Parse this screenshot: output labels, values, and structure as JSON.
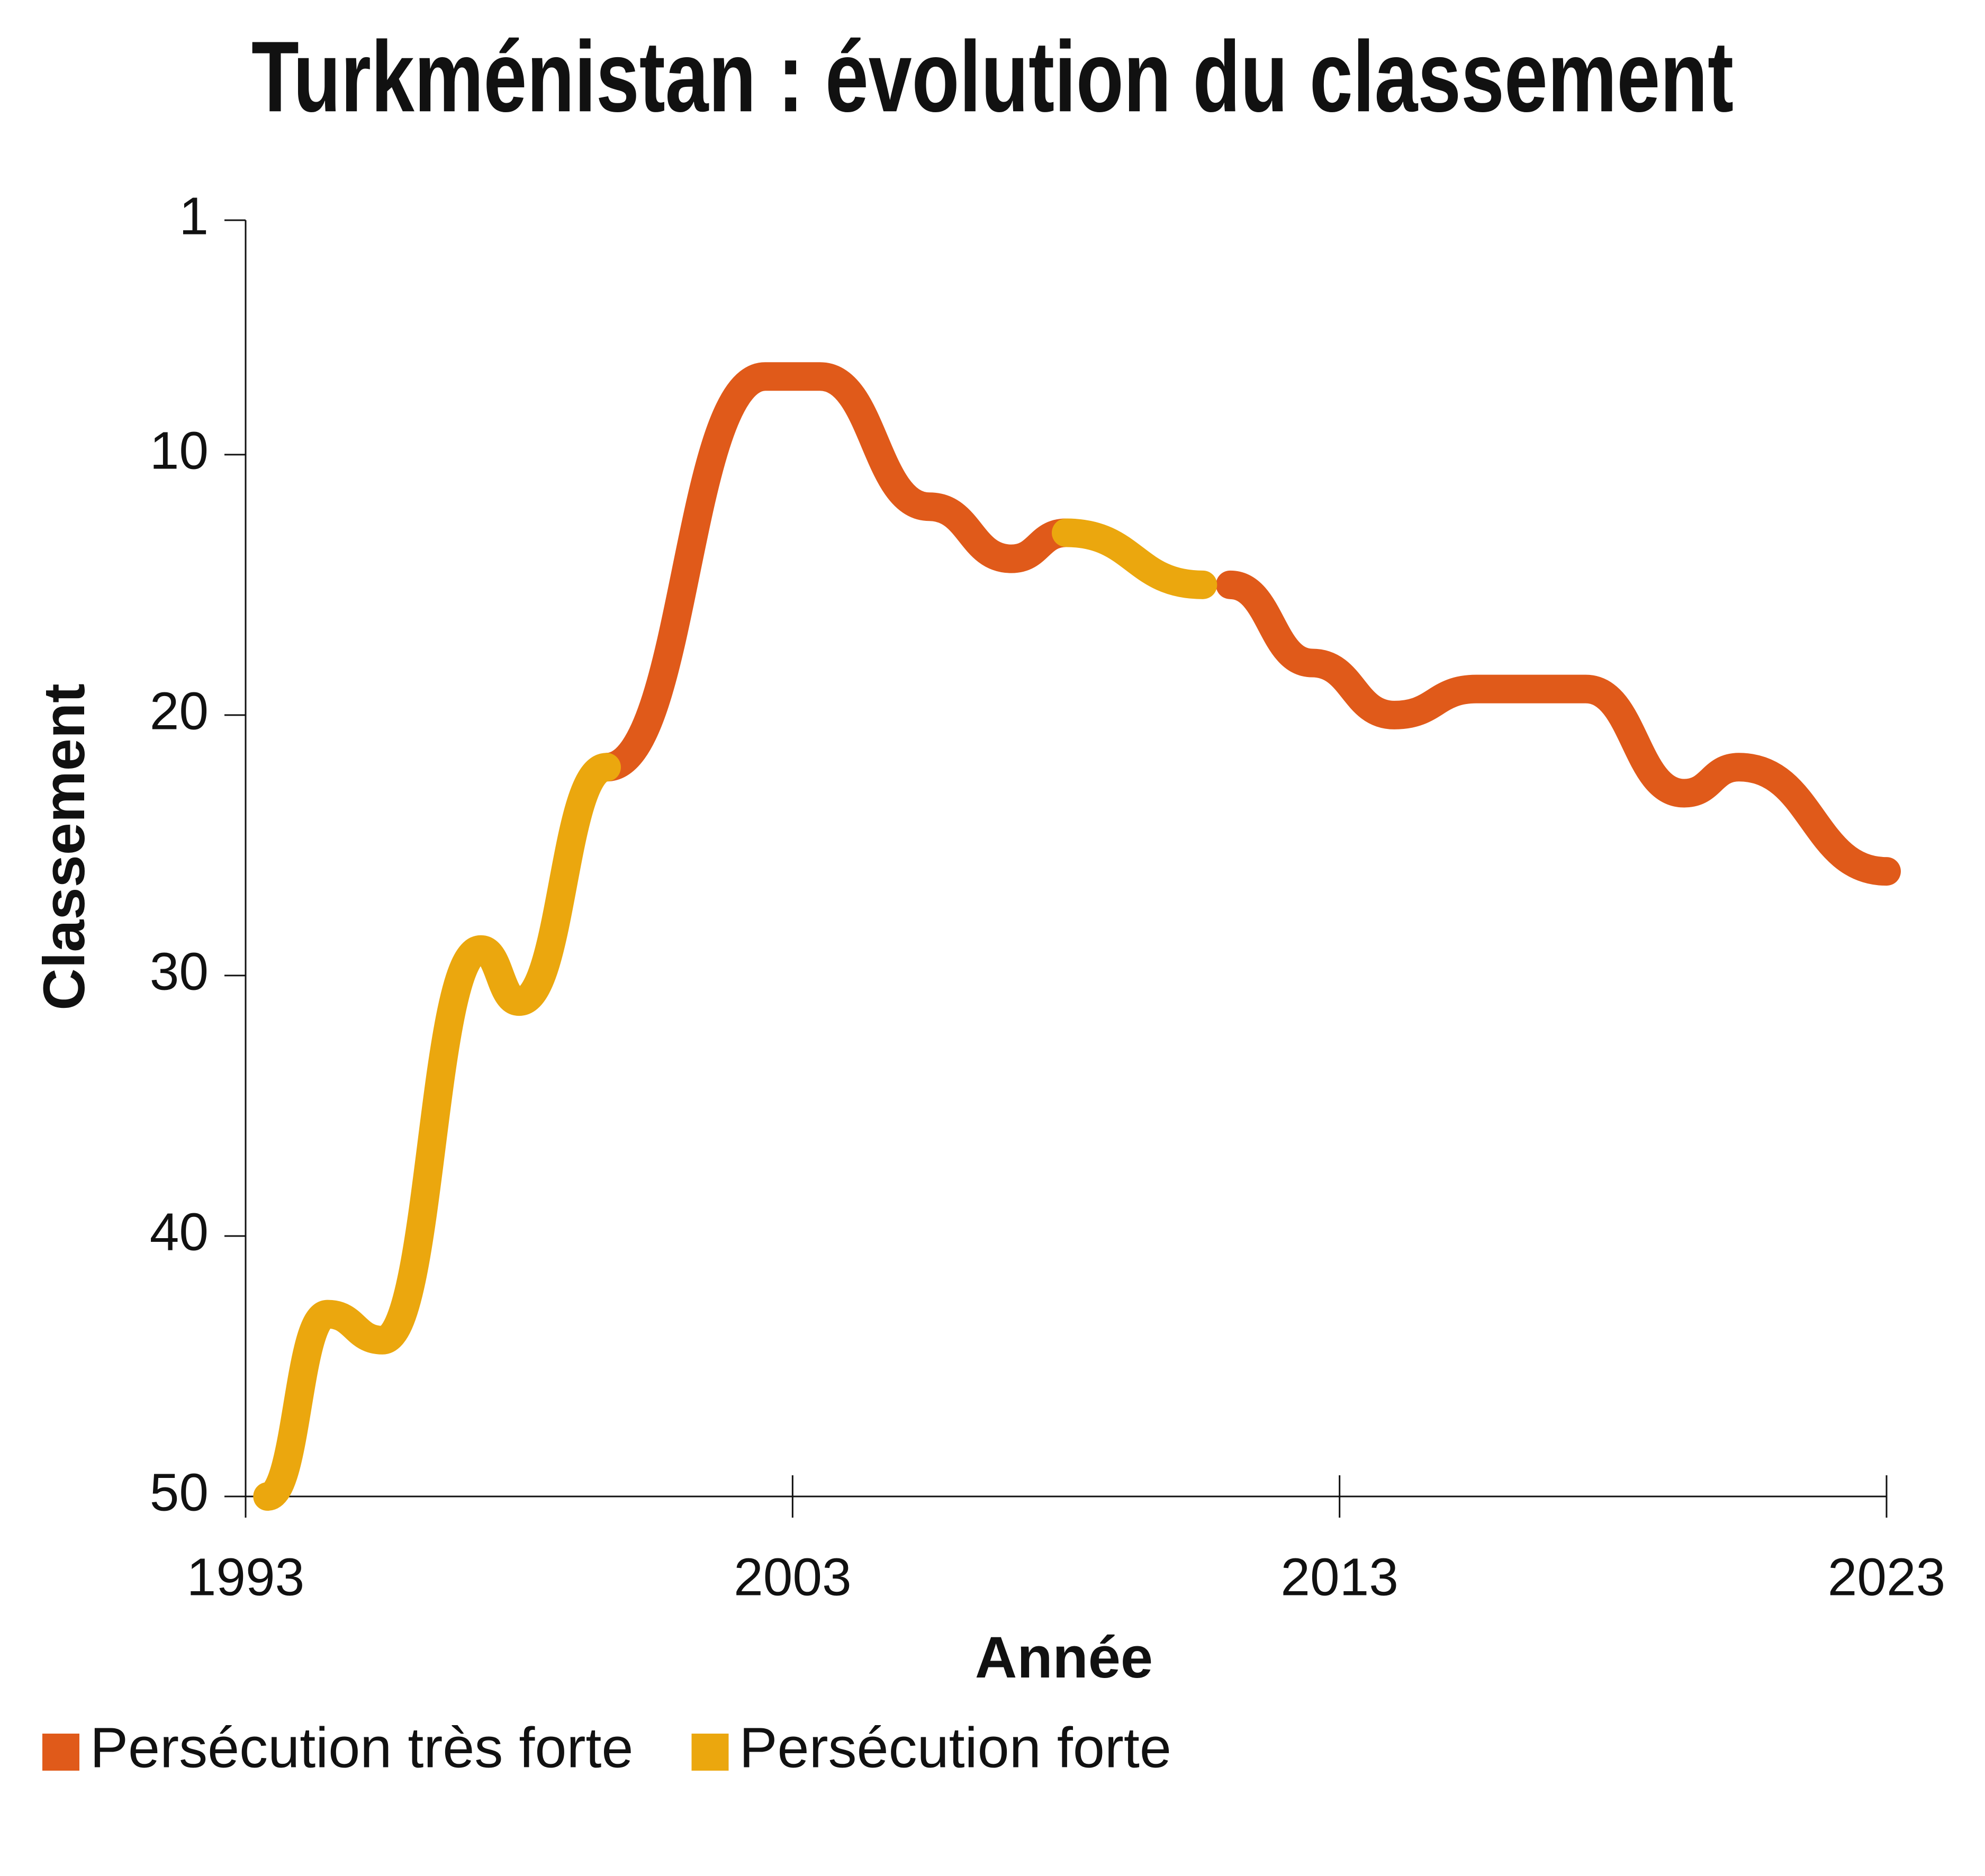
{
  "chart_data": {
    "type": "line",
    "title": "Turkménistan : évolution du classement",
    "x_label": "Année",
    "y_label": "Classement",
    "x": [
      1993.4,
      1994.5,
      1995.5,
      1997.3,
      1998,
      1999.6,
      2002.5,
      2003.5,
      2005.5,
      2007,
      2008,
      2010.5,
      2011,
      2012.5,
      2014,
      2015.5,
      2017.5,
      2019.3,
      2020.3,
      2023
    ],
    "series": [
      {
        "name": "Persécution très forte",
        "color": "#e05a1a",
        "values": [
          null,
          null,
          null,
          null,
          null,
          22,
          7,
          7,
          12,
          14,
          13,
          null,
          15,
          18,
          20,
          19,
          19,
          23,
          22,
          26
        ]
      },
      {
        "name": "Persécution forte",
        "color": "#eba70e",
        "values": [
          50,
          43,
          44,
          29,
          31,
          22,
          null,
          null,
          null,
          null,
          13,
          15,
          null,
          null,
          null,
          null,
          null,
          null,
          null,
          null
        ]
      }
    ],
    "xlim": [
      1993,
      2023
    ],
    "xticks": [
      1993,
      2003,
      2013,
      2023
    ],
    "ylim": [
      50,
      1
    ],
    "yticks": [
      1,
      10,
      20,
      30,
      40,
      50
    ],
    "legend": "bottom-left"
  }
}
